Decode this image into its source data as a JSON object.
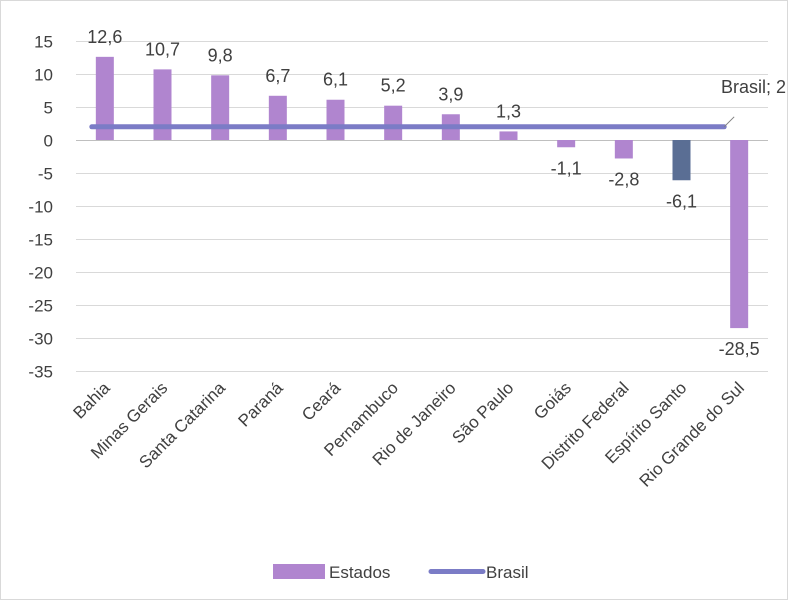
{
  "chart_data": {
    "type": "bar",
    "categories": [
      "Bahia",
      "Minas Gerais",
      "Santa Catarina",
      "Paraná",
      "Ceará",
      "Pernambuco",
      "Rio de Janeiro",
      "São Paulo",
      "Goiás",
      "Distrito Federal",
      "Espírito Santo",
      "Rio Grande do Sul"
    ],
    "series": [
      {
        "name": "Estados",
        "type": "bar",
        "values": [
          12.6,
          10.7,
          9.8,
          6.7,
          6.1,
          5.2,
          3.9,
          1.3,
          -1.1,
          -2.8,
          -6.1,
          -28.5
        ],
        "labels": [
          "12,6",
          "10,7",
          "9,8",
          "6,7",
          "6,1",
          "5,2",
          "3,9",
          "1,3",
          "-1,1",
          "-2,8",
          "-6,1",
          "-28,5"
        ]
      },
      {
        "name": "Brasil",
        "type": "line",
        "value": 2,
        "end_label": "Brasil; 2"
      }
    ],
    "highlighted_category": "Espírito Santo",
    "ylim": [
      -35,
      15
    ],
    "yticks": [
      15,
      10,
      5,
      0,
      -5,
      -10,
      -15,
      -20,
      -25,
      -30,
      -35
    ],
    "ytick_labels": [
      "15",
      "10",
      "5",
      "0",
      "-5",
      "-10",
      "-15",
      "-20",
      "-25",
      "-30",
      "-35"
    ],
    "grid": true,
    "legend_position": "bottom",
    "colors": {
      "bar": "#b085cf",
      "highlight": "#5a6e94",
      "line": "#7b7cc6",
      "grid": "#d9d9d9",
      "axis": "#bfbfbf"
    }
  }
}
